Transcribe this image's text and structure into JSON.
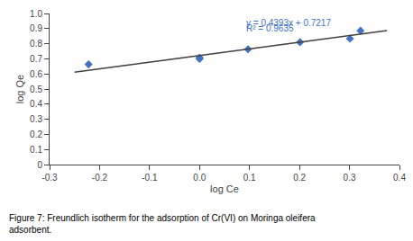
{
  "chart_data": {
    "type": "scatter",
    "xlabel": "log Ce",
    "ylabel": "log Qe",
    "caption": [
      "Figure 7: Freundlich isotherm for the adsorption of Cr(VI) on Moringa oleifera",
      "adsorbent."
    ],
    "series": [
      {
        "type": "scatter",
        "color": "#4472C4",
        "marker": "diamond",
        "x": [
          -0.222,
          0.0,
          0.0,
          0.097,
          0.201,
          0.301,
          0.322
        ],
        "values": [
          0.663,
          0.699,
          0.708,
          0.763,
          0.81,
          0.833,
          0.886
        ]
      },
      {
        "type": "line",
        "color": "#404040",
        "line_style": "solid",
        "x": [
          -0.25,
          0.375
        ],
        "values": [
          0.611875,
          0.8864375
        ]
      }
    ],
    "annotations": [
      {
        "text": "y = 0.4393x + 0.7217",
        "x": 0.09,
        "y": 0.895,
        "color": "#4472C4"
      },
      {
        "text": "R² = 0.9635",
        "x": 0.09,
        "y": 0.858,
        "color": "#4472C4"
      }
    ],
    "xlim": [
      -0.3,
      0.4
    ],
    "ylim": [
      0,
      1.0
    ],
    "xticks": [
      -0.3,
      -0.2,
      -0.1,
      {
        "value": 0,
        "label": "0.0"
      },
      0.1,
      0.2,
      0.3,
      0.4
    ],
    "yticks": [
      0,
      0.1,
      0.2,
      0.3,
      0.4,
      0.5,
      0.6,
      0.7,
      0.8,
      0.9,
      {
        "value": 1,
        "label": "1.0"
      }
    ],
    "grid": false
  }
}
